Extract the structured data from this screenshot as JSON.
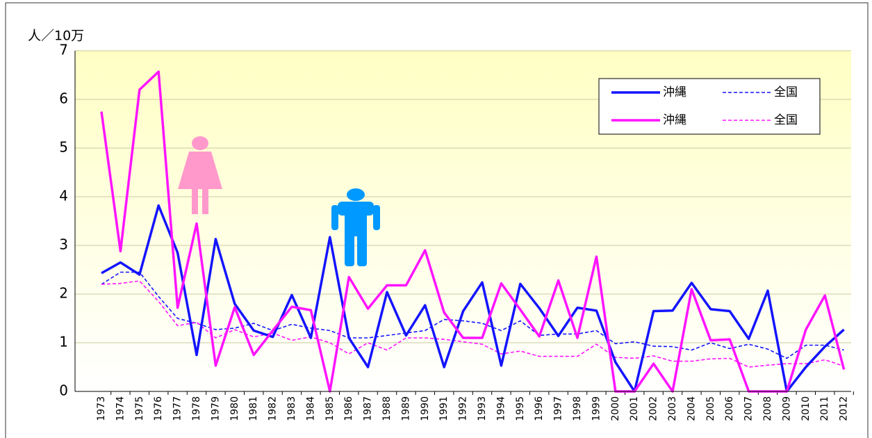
{
  "chart_data": {
    "type": "line",
    "y_label": "人／10万",
    "categories": [
      "1973",
      "1974",
      "1975",
      "1976",
      "1977",
      "1978",
      "1979",
      "1980",
      "1981",
      "1982",
      "1983",
      "1984",
      "1985",
      "1986",
      "1987",
      "1988",
      "1989",
      "1990",
      "1991",
      "1992",
      "1993",
      "1994",
      "1995",
      "1996",
      "1997",
      "1998",
      "1999",
      "2000",
      "2001",
      "2002",
      "2003",
      "2004",
      "2005",
      "2006",
      "2007",
      "2008",
      "2009",
      "2010",
      "2011",
      "2012"
    ],
    "series": [
      {
        "name": "沖縄",
        "color": "#1414ff",
        "style": "solid",
        "values": [
          2.43,
          2.65,
          2.4,
          3.82,
          2.85,
          0.75,
          3.13,
          1.8,
          1.25,
          1.12,
          1.98,
          1.1,
          3.17,
          1.1,
          0.5,
          2.04,
          1.15,
          1.77,
          0.5,
          1.65,
          2.24,
          0.53,
          2.21,
          1.71,
          1.14,
          1.72,
          1.66,
          0.6,
          0,
          1.65,
          1.66,
          2.23,
          1.69,
          1.65,
          1.08,
          2.07,
          0,
          0.5,
          0.92,
          1.27
        ]
      },
      {
        "name": "全国",
        "color": "#1414ff",
        "style": "dashed",
        "values": [
          2.2,
          2.45,
          2.45,
          1.95,
          1.5,
          1.4,
          1.27,
          1.3,
          1.4,
          1.25,
          1.38,
          1.3,
          1.25,
          1.1,
          1.1,
          1.15,
          1.2,
          1.25,
          1.48,
          1.45,
          1.4,
          1.25,
          1.45,
          1.15,
          1.18,
          1.18,
          1.25,
          0.98,
          1.02,
          0.93,
          0.92,
          0.85,
          1.0,
          0.88,
          0.97,
          0.87,
          0.68,
          0.95,
          0.95,
          0.85
        ]
      },
      {
        "name": "沖縄",
        "color": "#ff14ff",
        "style": "solid",
        "values": [
          5.75,
          2.88,
          6.2,
          6.57,
          1.72,
          3.45,
          0.53,
          1.73,
          0.75,
          1.25,
          1.74,
          1.67,
          0,
          2.35,
          1.7,
          2.18,
          2.18,
          2.9,
          1.62,
          1.1,
          1.1,
          2.22,
          1.68,
          1.13,
          2.28,
          1.1,
          2.77,
          0,
          0,
          0.57,
          0,
          2.1,
          1.05,
          1.07,
          0,
          0,
          0,
          1.27,
          1.97,
          0.45
        ]
      },
      {
        "name": "全国",
        "color": "#ff14ff",
        "style": "dashed",
        "values": [
          2.2,
          2.22,
          2.27,
          1.85,
          1.35,
          1.42,
          1.1,
          1.27,
          1.12,
          1.2,
          1.05,
          1.12,
          1.0,
          0.77,
          1.0,
          0.85,
          1.1,
          1.1,
          1.07,
          1.02,
          0.97,
          0.77,
          0.83,
          0.72,
          0.72,
          0.72,
          0.97,
          0.7,
          0.68,
          0.73,
          0.62,
          0.62,
          0.67,
          0.68,
          0.5,
          0.54,
          0.57,
          0.57,
          0.65,
          0.52
        ]
      }
    ],
    "ylim": [
      0,
      7
    ],
    "yticks": [
      0,
      1,
      2,
      3,
      4,
      5,
      6,
      7
    ],
    "grid": true,
    "legend": "upper right"
  }
}
